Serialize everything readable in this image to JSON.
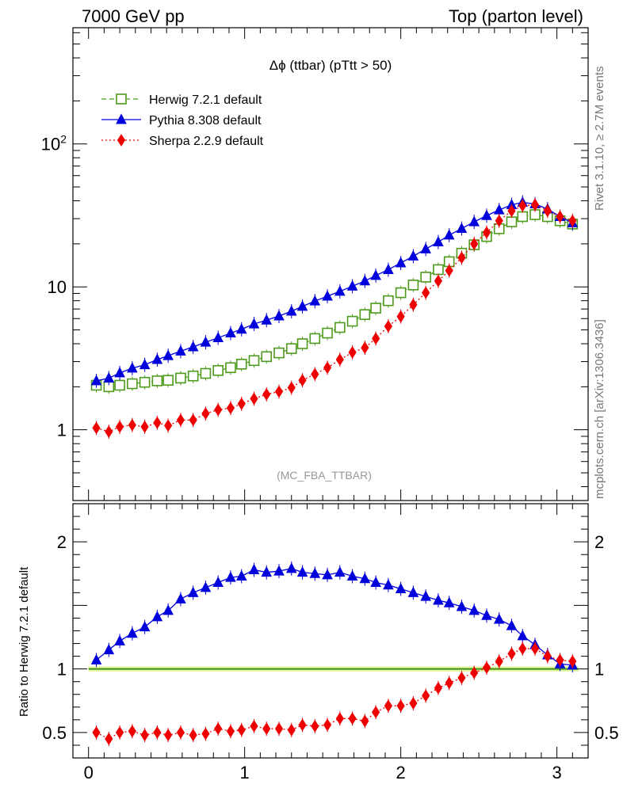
{
  "header": {
    "left": "7000 GeV pp",
    "right": "Top (parton level)"
  },
  "side_texts": {
    "rivet": "Rivet 3.1.10, ≥ 2.7M events",
    "mcplots": "mcplots.cern.ch [arXiv:1306.3436]"
  },
  "chart_data": [
    {
      "type": "line",
      "title": "Δϕ (ttbar) (pTtt > 50)",
      "annotation": "(MC_FBA_TTBAR)",
      "yscale": "log",
      "xlim": [
        -0.1,
        3.2
      ],
      "ylim": [
        0.32,
        650
      ],
      "yticks": [
        1,
        10,
        100
      ],
      "ytick_labels": [
        "1",
        "10",
        "10^2"
      ],
      "xlabel": "",
      "ylabel": "",
      "legend_position": "top-left",
      "x": [
        0.05,
        0.13,
        0.2,
        0.28,
        0.36,
        0.44,
        0.51,
        0.59,
        0.67,
        0.75,
        0.83,
        0.91,
        0.98,
        1.06,
        1.14,
        1.22,
        1.3,
        1.37,
        1.45,
        1.53,
        1.61,
        1.69,
        1.77,
        1.84,
        1.92,
        2.0,
        2.08,
        2.16,
        2.24,
        2.31,
        2.39,
        2.47,
        2.55,
        2.63,
        2.71,
        2.78,
        2.86,
        2.94,
        3.02,
        3.1
      ],
      "series": [
        {
          "name": "Herwig 7.2.1 default",
          "color": "#4e9a1c",
          "marker": "open-square",
          "line": "dashed",
          "values": [
            2.05,
            2.0,
            2.05,
            2.1,
            2.15,
            2.2,
            2.22,
            2.3,
            2.38,
            2.48,
            2.6,
            2.72,
            2.88,
            3.05,
            3.25,
            3.45,
            3.7,
            4.0,
            4.35,
            4.75,
            5.2,
            5.75,
            6.4,
            7.1,
            8.0,
            9.1,
            10.3,
            11.7,
            13.2,
            15.0,
            17.2,
            19.7,
            22.5,
            25.5,
            28.5,
            31.0,
            32.0,
            31.0,
            29.0,
            27.5
          ]
        },
        {
          "name": "Pythia 8.308 default",
          "color": "#0000dd",
          "marker": "triangle",
          "line": "solid",
          "values": [
            2.2,
            2.3,
            2.5,
            2.7,
            2.85,
            3.1,
            3.3,
            3.55,
            3.8,
            4.1,
            4.4,
            4.75,
            5.05,
            5.5,
            5.85,
            6.25,
            6.75,
            7.3,
            7.95,
            8.6,
            9.3,
            10.1,
            11.0,
            12.0,
            13.2,
            14.7,
            16.4,
            18.4,
            20.6,
            23.0,
            25.6,
            28.5,
            31.5,
            34.5,
            37.5,
            39.0,
            38.0,
            35.0,
            31.0,
            28.0
          ]
        },
        {
          "name": "Sherpa 2.2.9 default",
          "color": "#ee0000",
          "marker": "diamond",
          "line": "dotted",
          "values": [
            1.03,
            0.97,
            1.05,
            1.08,
            1.05,
            1.12,
            1.07,
            1.17,
            1.17,
            1.3,
            1.38,
            1.42,
            1.52,
            1.65,
            1.77,
            1.85,
            1.97,
            2.22,
            2.45,
            2.72,
            3.1,
            3.48,
            3.75,
            4.35,
            5.3,
            6.2,
            7.5,
            9.1,
            11.0,
            13.0,
            16.0,
            20.0,
            24.0,
            29.0,
            34.0,
            37.0,
            37.5,
            34.0,
            31.0,
            29.0
          ]
        }
      ]
    },
    {
      "type": "line",
      "xlim": [
        -0.1,
        3.2
      ],
      "ylim": [
        0.3,
        2.3
      ],
      "xticks": [
        0,
        1,
        2,
        3
      ],
      "xtick_labels": [
        "0",
        "1",
        "2",
        "3"
      ],
      "yticks": [
        0.5,
        1,
        2
      ],
      "ytick_labels": [
        "0.5",
        "1",
        "2"
      ],
      "ylabel": "Ratio to Herwig 7.2.1 default",
      "reference_line": 1,
      "x": [
        0.05,
        0.13,
        0.2,
        0.28,
        0.36,
        0.44,
        0.51,
        0.59,
        0.67,
        0.75,
        0.83,
        0.91,
        0.98,
        1.06,
        1.14,
        1.22,
        1.3,
        1.37,
        1.45,
        1.53,
        1.61,
        1.69,
        1.77,
        1.84,
        1.92,
        2.0,
        2.08,
        2.16,
        2.24,
        2.31,
        2.39,
        2.47,
        2.55,
        2.63,
        2.71,
        2.78,
        2.86,
        2.94,
        3.02,
        3.1
      ],
      "series": [
        {
          "name": "Pythia 8.308 default",
          "color": "#0000dd",
          "marker": "triangle",
          "line": "solid",
          "values": [
            1.07,
            1.15,
            1.22,
            1.28,
            1.33,
            1.41,
            1.46,
            1.55,
            1.6,
            1.64,
            1.68,
            1.72,
            1.73,
            1.78,
            1.76,
            1.77,
            1.79,
            1.76,
            1.75,
            1.74,
            1.76,
            1.73,
            1.71,
            1.68,
            1.66,
            1.63,
            1.6,
            1.57,
            1.54,
            1.52,
            1.49,
            1.46,
            1.42,
            1.39,
            1.34,
            1.26,
            1.19,
            1.11,
            1.04,
            1.03
          ]
        },
        {
          "name": "Sherpa 2.2.9 default",
          "color": "#ee0000",
          "marker": "diamond",
          "line": "dotted",
          "values": [
            0.5,
            0.45,
            0.5,
            0.51,
            0.48,
            0.5,
            0.48,
            0.5,
            0.48,
            0.49,
            0.53,
            0.51,
            0.52,
            0.55,
            0.53,
            0.53,
            0.52,
            0.56,
            0.55,
            0.56,
            0.61,
            0.61,
            0.59,
            0.66,
            0.71,
            0.71,
            0.73,
            0.79,
            0.85,
            0.89,
            0.93,
            0.97,
            1.01,
            1.06,
            1.12,
            1.16,
            1.16,
            1.1,
            1.07,
            1.06
          ]
        }
      ]
    }
  ]
}
